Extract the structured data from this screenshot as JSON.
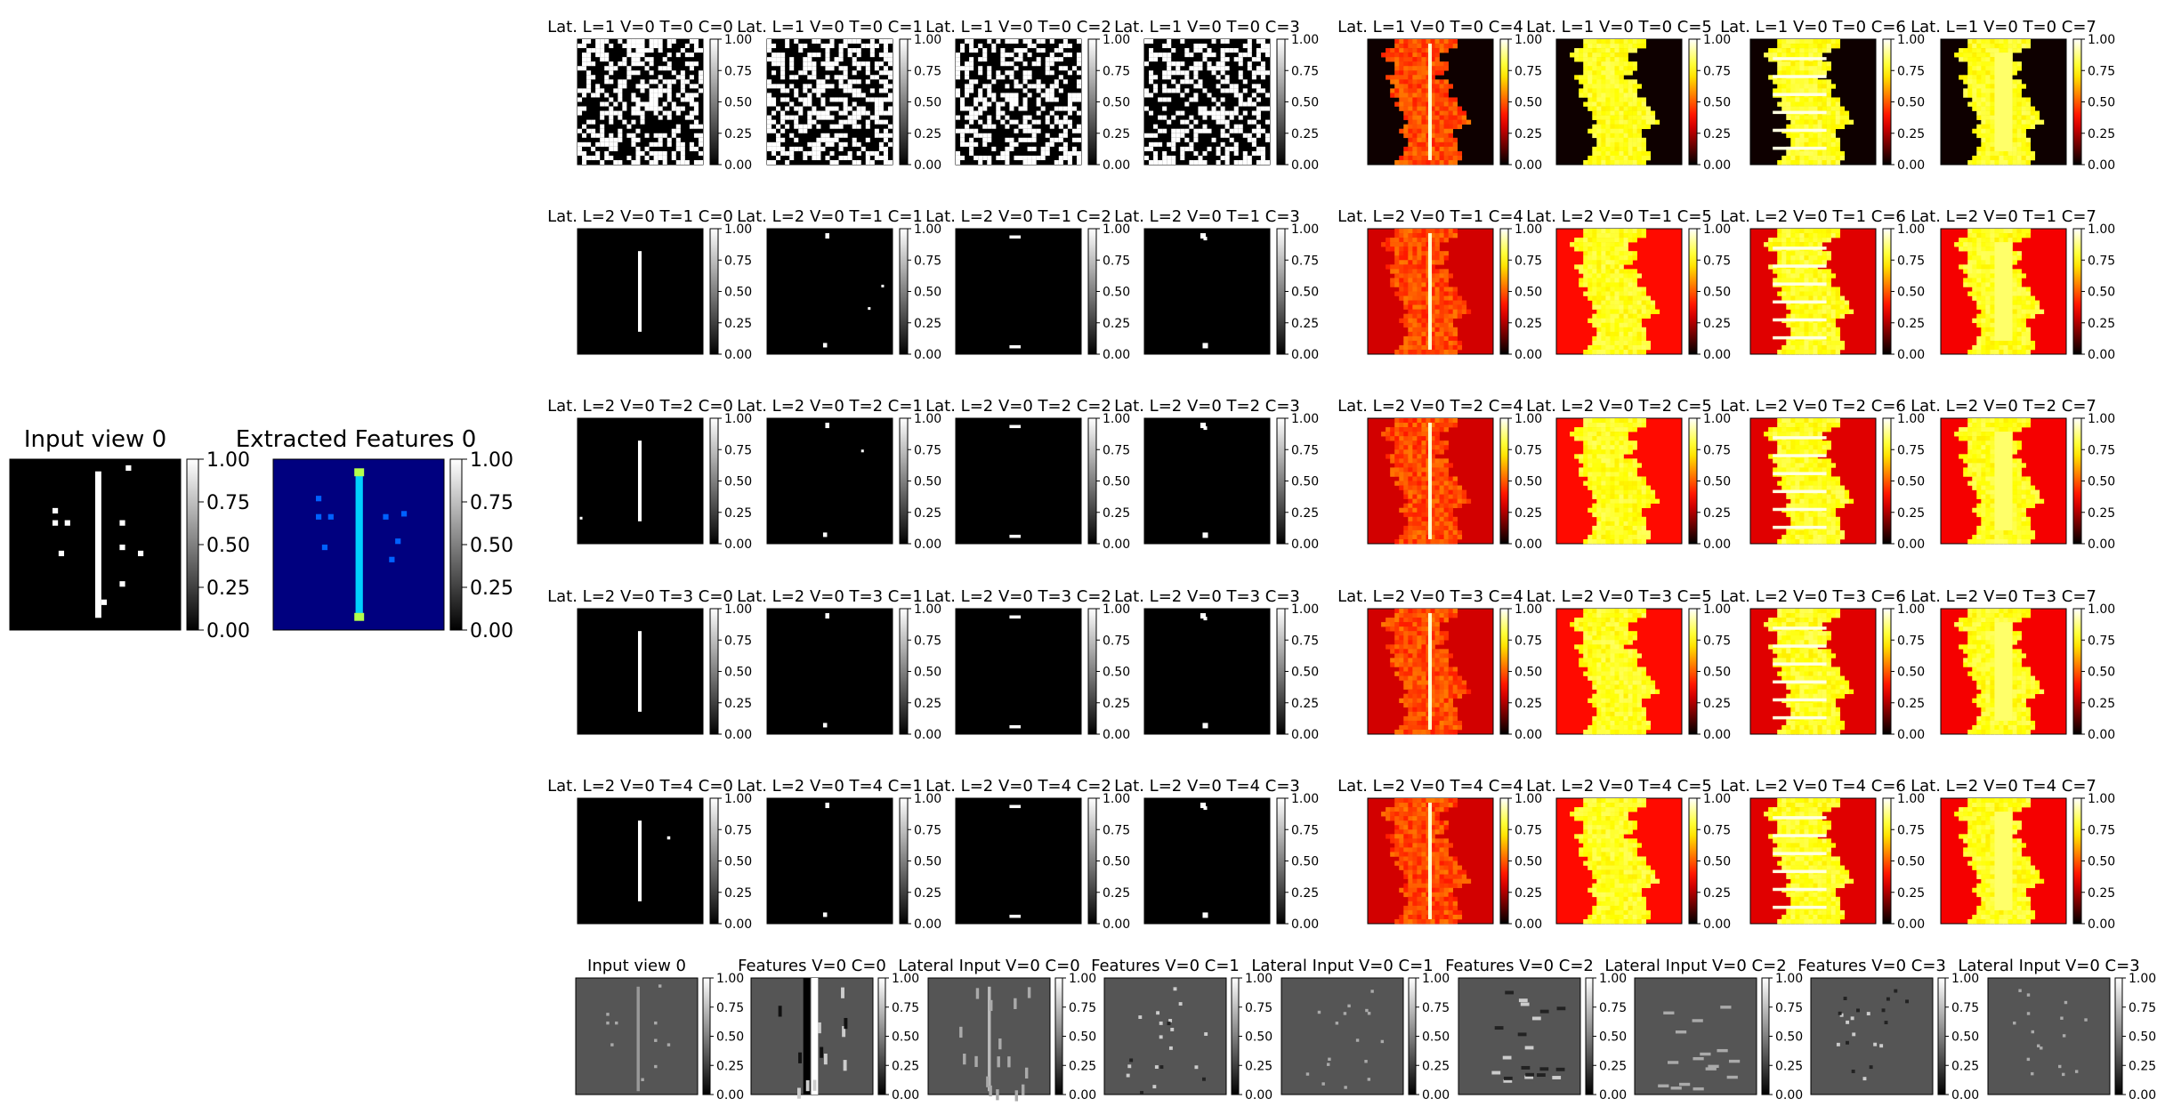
{
  "figure": {
    "titles": {
      "input_view": "Input view 0",
      "extracted_features": "Extracted Features 0",
      "lat_row1": [
        "Lat. L=1 V=0 T=0 C=0",
        "Lat. L=1 V=0 T=0 C=1",
        "Lat. L=1 V=0 T=0 C=2",
        "Lat. L=1 V=0 T=0 C=3",
        "Lat. L=1 V=0 T=0 C=4",
        "Lat. L=1 V=0 T=0 C=5",
        "Lat. L=1 V=0 T=0 C=6",
        "Lat. L=1 V=0 T=0 C=7"
      ],
      "lat_row2": [
        "Lat. L=2 V=0 T=1 C=0",
        "Lat. L=2 V=0 T=1 C=1",
        "Lat. L=2 V=0 T=1 C=2",
        "Lat. L=2 V=0 T=1 C=3",
        "Lat. L=2 V=0 T=1 C=4",
        "Lat. L=2 V=0 T=1 C=5",
        "Lat. L=2 V=0 T=1 C=6",
        "Lat. L=2 V=0 T=1 C=7"
      ],
      "lat_row3": [
        "Lat. L=2 V=0 T=2 C=0",
        "Lat. L=2 V=0 T=2 C=1",
        "Lat. L=2 V=0 T=2 C=2",
        "Lat. L=2 V=0 T=2 C=3",
        "Lat. L=2 V=0 T=2 C=4",
        "Lat. L=2 V=0 T=2 C=5",
        "Lat. L=2 V=0 T=2 C=6",
        "Lat. L=2 V=0 T=2 C=7"
      ],
      "lat_row4": [
        "Lat. L=2 V=0 T=3 C=0",
        "Lat. L=2 V=0 T=3 C=1",
        "Lat. L=2 V=0 T=3 C=2",
        "Lat. L=2 V=0 T=3 C=3",
        "Lat. L=2 V=0 T=3 C=4",
        "Lat. L=2 V=0 T=3 C=5",
        "Lat. L=2 V=0 T=3 C=6",
        "Lat. L=2 V=0 T=3 C=7"
      ],
      "lat_row5": [
        "Lat. L=2 V=0 T=4 C=0",
        "Lat. L=2 V=0 T=4 C=1",
        "Lat. L=2 V=0 T=4 C=2",
        "Lat. L=2 V=0 T=4 C=3",
        "Lat. L=2 V=0 T=4 C=4",
        "Lat. L=2 V=0 T=4 C=5",
        "Lat. L=2 V=0 T=4 C=6",
        "Lat. L=2 V=0 T=4 C=7"
      ],
      "bottom_row": [
        "Input view 0",
        "Features V=0 C=0",
        "Lateral Input V=0 C=0",
        "Features V=0 C=1",
        "Lateral Input V=0 C=1",
        "Features V=0 C=2",
        "Lateral Input V=0 C=2",
        "Features V=0 C=3",
        "Lateral Input V=0 C=3"
      ]
    },
    "colorbar_ticks": [
      "0.00",
      "0.25",
      "0.50",
      "0.75",
      "1.00"
    ]
  },
  "chart_data": {
    "type": "heatmap",
    "description_of_layout": "grid of image panels with colorbars",
    "colorbar_range": [
      0,
      1
    ],
    "colormaps": {
      "binary_panels": "gray",
      "extracted_features": "jet",
      "lat_c4_c7": "hot",
      "bottom_row": "gray"
    },
    "panels": {
      "left_large": [
        "Input view 0",
        "Extracted Features 0"
      ],
      "lateral_grid_rows": 5,
      "lateral_grid_cols": 8,
      "bottom_row_count": 9
    }
  }
}
